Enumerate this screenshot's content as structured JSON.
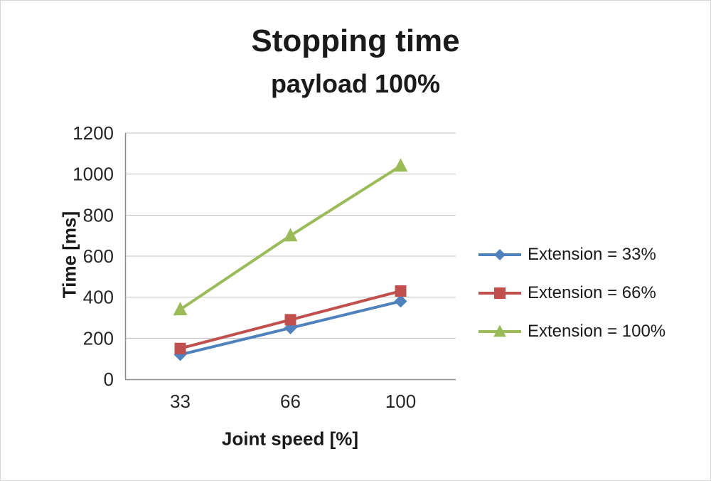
{
  "chart_data": {
    "type": "line",
    "title": "Stopping time",
    "subtitle": "payload 100%",
    "xlabel": "Joint speed [%]",
    "ylabel": "Time [ms]",
    "categories": [
      "33",
      "66",
      "100"
    ],
    "series": [
      {
        "name": "Extension = 33%",
        "values": [
          120,
          250,
          380
        ],
        "color": "#4F81BD",
        "marker": "diamond"
      },
      {
        "name": "Extension = 66%",
        "values": [
          150,
          290,
          430
        ],
        "color": "#C0504D",
        "marker": "square"
      },
      {
        "name": "Extension = 100%",
        "values": [
          340,
          700,
          1040
        ],
        "color": "#9BBB59",
        "marker": "triangle"
      }
    ],
    "ylim": [
      0,
      1200
    ],
    "ytick_step": 200,
    "grid": true,
    "legend_position": "right",
    "gridline_color": "#BFBFBF",
    "axis_color": "#8C8C8C",
    "text_color": "#262626"
  }
}
